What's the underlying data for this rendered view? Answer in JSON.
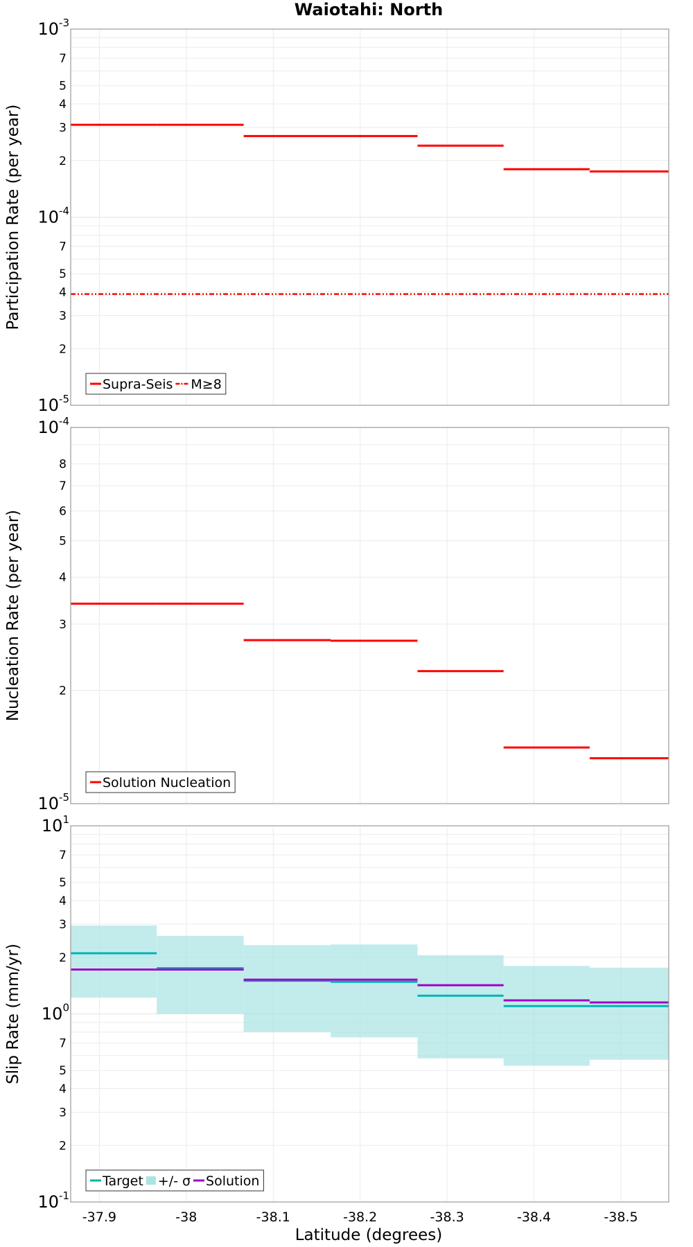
{
  "chart_data": [
    {
      "type": "line",
      "title": "Waiotahi: North",
      "ylabel": "Participation Rate (per year)",
      "yscale": "log",
      "ylim": [
        1e-05,
        0.001
      ],
      "x_ticks": [
        "-37.9",
        "-38",
        "-38.1",
        "-38.2",
        "-38.3",
        "-38.4",
        "-38.5"
      ],
      "xlim": [
        -37.867,
        -38.555
      ],
      "legend": "bottom-left",
      "series": [
        {
          "name": "Supra-Seis",
          "style": "solid",
          "color": "#ff0000",
          "steps": [
            {
              "x0": -37.867,
              "x1": -37.966,
              "y": 0.00031
            },
            {
              "x0": -37.966,
              "x1": -38.066,
              "y": 0.00031
            },
            {
              "x0": -38.066,
              "x1": -38.166,
              "y": 0.00027
            },
            {
              "x0": -38.166,
              "x1": -38.266,
              "y": 0.00027
            },
            {
              "x0": -38.266,
              "x1": -38.365,
              "y": 0.00024
            },
            {
              "x0": -38.365,
              "x1": -38.464,
              "y": 0.00018
            },
            {
              "x0": -38.464,
              "x1": -38.555,
              "y": 0.000175
            }
          ]
        },
        {
          "name": "M≥8",
          "style": "dash-dot",
          "color": "#ff0000",
          "steps": [
            {
              "x0": -37.867,
              "x1": -38.555,
              "y": 3.9e-05
            }
          ]
        }
      ]
    },
    {
      "type": "line",
      "ylabel": "Nucleation Rate (per year)",
      "yscale": "log",
      "ylim": [
        1e-05,
        0.0001
      ],
      "xlim": [
        -37.867,
        -38.555
      ],
      "legend": "bottom-left",
      "series": [
        {
          "name": "Solution Nucleation",
          "style": "solid",
          "color": "#ff0000",
          "steps": [
            {
              "x0": -37.867,
              "x1": -37.966,
              "y": 3.4e-05
            },
            {
              "x0": -37.966,
              "x1": -38.066,
              "y": 3.4e-05
            },
            {
              "x0": -38.066,
              "x1": -38.166,
              "y": 2.72e-05
            },
            {
              "x0": -38.166,
              "x1": -38.266,
              "y": 2.71e-05
            },
            {
              "x0": -38.266,
              "x1": -38.365,
              "y": 2.25e-05
            },
            {
              "x0": -38.365,
              "x1": -38.464,
              "y": 1.41e-05
            },
            {
              "x0": -38.464,
              "x1": -38.555,
              "y": 1.32e-05
            }
          ]
        }
      ]
    },
    {
      "type": "area",
      "ylabel": "Slip Rate (mm/yr)",
      "xlabel": "Latitude (degrees)",
      "yscale": "log",
      "ylim": [
        0.1,
        10
      ],
      "xlim": [
        -37.867,
        -38.555
      ],
      "legend": "bottom-left",
      "series": [
        {
          "name": "Target",
          "style": "solid",
          "color": "#00b3b3",
          "steps": [
            {
              "x0": -37.867,
              "x1": -37.966,
              "y": 2.1
            },
            {
              "x0": -37.966,
              "x1": -38.066,
              "y": 1.75
            },
            {
              "x0": -38.066,
              "x1": -38.166,
              "y": 1.5
            },
            {
              "x0": -38.166,
              "x1": -38.266,
              "y": 1.48
            },
            {
              "x0": -38.266,
              "x1": -38.365,
              "y": 1.25
            },
            {
              "x0": -38.365,
              "x1": -38.464,
              "y": 1.1
            },
            {
              "x0": -38.464,
              "x1": -38.555,
              "y": 1.1
            }
          ]
        },
        {
          "name": "+/- σ",
          "style": "band",
          "color": "#a8e4e4",
          "steps": [
            {
              "x0": -37.867,
              "x1": -37.966,
              "lo": 1.22,
              "hi": 2.95
            },
            {
              "x0": -37.966,
              "x1": -38.066,
              "lo": 1.0,
              "hi": 2.6
            },
            {
              "x0": -38.066,
              "x1": -38.166,
              "lo": 0.8,
              "hi": 2.32
            },
            {
              "x0": -38.166,
              "x1": -38.266,
              "lo": 0.75,
              "hi": 2.34
            },
            {
              "x0": -38.266,
              "x1": -38.365,
              "lo": 0.58,
              "hi": 2.05
            },
            {
              "x0": -38.365,
              "x1": -38.464,
              "lo": 0.53,
              "hi": 1.8
            },
            {
              "x0": -38.464,
              "x1": -38.555,
              "lo": 0.57,
              "hi": 1.76
            }
          ]
        },
        {
          "name": "Solution",
          "style": "solid",
          "color": "#a000c8",
          "steps": [
            {
              "x0": -37.867,
              "x1": -37.966,
              "y": 1.72
            },
            {
              "x0": -37.966,
              "x1": -38.066,
              "y": 1.72
            },
            {
              "x0": -38.066,
              "x1": -38.166,
              "y": 1.52
            },
            {
              "x0": -38.166,
              "x1": -38.266,
              "y": 1.52
            },
            {
              "x0": -38.266,
              "x1": -38.365,
              "y": 1.42
            },
            {
              "x0": -38.365,
              "x1": -38.464,
              "y": 1.18
            },
            {
              "x0": -38.464,
              "x1": -38.555,
              "y": 1.15
            }
          ]
        }
      ]
    }
  ]
}
